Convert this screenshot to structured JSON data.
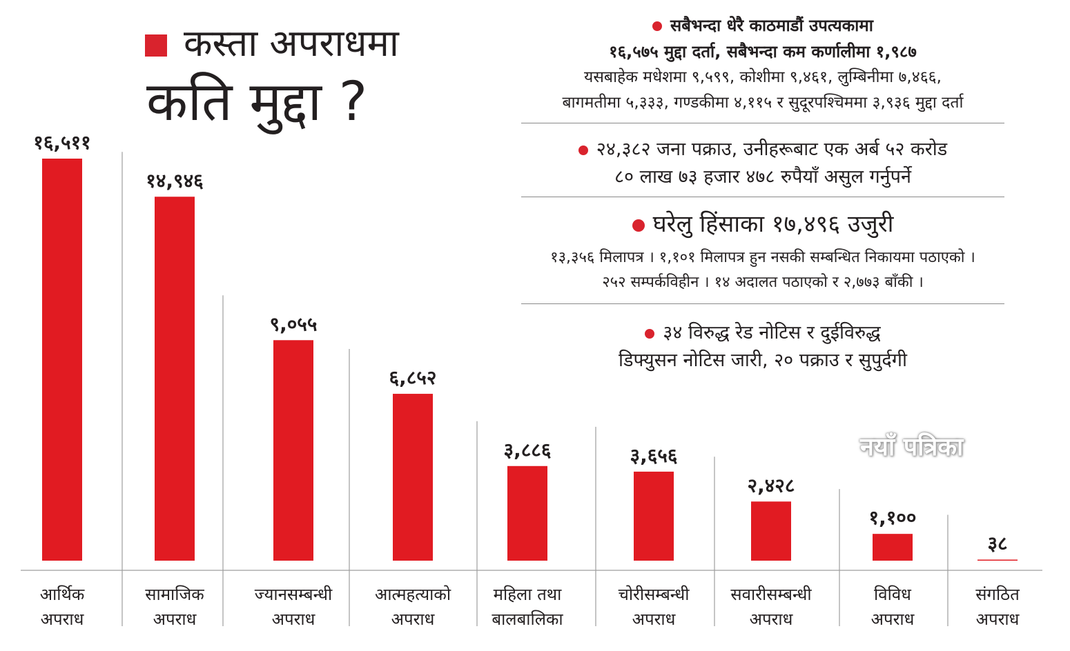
{
  "title": {
    "line1": "कस्ता अपराधमा",
    "line2": "कति मुद्दा ?"
  },
  "notes": {
    "n1": {
      "line1": "सबैभन्दा धेरै काठमाडौं उपत्यकामा",
      "line2": "१६,५७५ मुद्दा दर्ता, सबैभन्दा कम कर्णालीमा १,९८७",
      "line3": "यसबाहेक मधेशमा ९,५९९, कोशीमा ९,४६१, लुम्बिनीमा ७,४६६,",
      "line4": "बागमतीमा ५,३३३, गण्डकीमा ४,११५ र सुदूरपश्चिममा ३,९३६ मुद्दा दर्ता"
    },
    "n2": {
      "line1": "२४,३८२ जना पक्राउ, उनीहरूबाट एक अर्ब ५२ करोड",
      "line2": "८० लाख ७३ हजार ४७८ रुपैयाँ असुल गर्नुपर्ने"
    },
    "n3": {
      "line1": "घरेलु हिंसाका १७,४९६ उजुरी",
      "line2": "१३,३५६ मिलापत्र । १,१०१ मिलापत्र हुन नसकी सम्बन्धित निकायमा पठाएको ।",
      "line3": "२५२ सम्पर्कविहीन । १४ अदालत पठाएको र २,७७३ बाँकी ।"
    },
    "n4": {
      "line1": "३४ विरुद्ध रेड नोटिस र दुईविरुद्ध",
      "line2": "डिफ्युसन नोटिस जारी, २० पक्राउ र सुपुर्दगी"
    }
  },
  "watermark": "नयाँ पत्रिका",
  "colors": {
    "bar": "#e11b22",
    "accent": "#d9232d",
    "text": "#231f20",
    "divider": "#9e9e9e"
  },
  "chart_data": {
    "type": "bar",
    "categories": [
      [
        "आर्थिक",
        "अपराध"
      ],
      [
        "सामाजिक",
        "अपराध"
      ],
      [
        "ज्यानसम्बन्धी",
        "अपराध"
      ],
      [
        "आत्महत्याको",
        "अपराध"
      ],
      [
        "महिला तथा",
        "बालबालिका"
      ],
      [
        "चोरीसम्बन्धी",
        "अपराध"
      ],
      [
        "सवारीसम्बन्धी",
        "अपराध"
      ],
      [
        "विविध",
        "अपराध"
      ],
      [
        "संगठित",
        "अपराध"
      ]
    ],
    "values": [
      16511,
      14946,
      9055,
      6852,
      3886,
      3656,
      2428,
      1100,
      38
    ],
    "value_labels": [
      "१६,५११",
      "१४,९४६",
      "९,०५५",
      "६,८५२",
      "३,८८६",
      "३,६५६",
      "२,४२८",
      "१,१००",
      "३८"
    ],
    "ylim": [
      0,
      16511
    ],
    "grid": false
  }
}
